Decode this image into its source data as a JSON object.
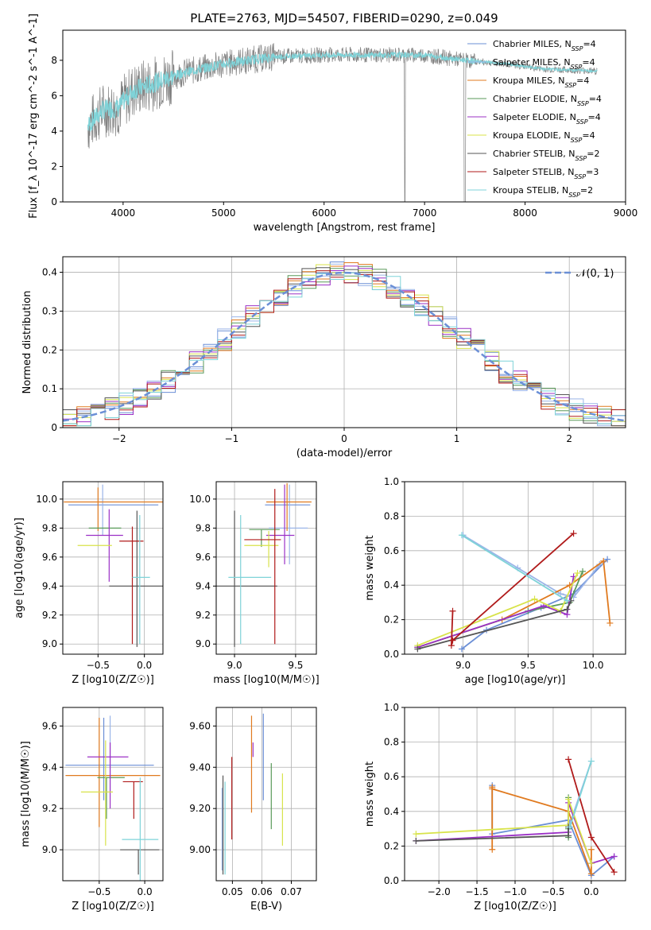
{
  "figure": {
    "title": "PLATE=2763, MJD=54507, FIBERID=0290, z=0.049"
  },
  "models": [
    {
      "name": "Chabrier MILES",
      "nssp": "4",
      "color": "#6b8fd6"
    },
    {
      "name": "Salpeter MILES",
      "nssp": "4",
      "color": "#9bb5e8"
    },
    {
      "name": "Kroupa MILES",
      "nssp": "4",
      "color": "#e07a1f"
    },
    {
      "name": "Chabrier ELODIE",
      "nssp": "4",
      "color": "#5a9a5a"
    },
    {
      "name": "Salpeter ELODIE",
      "nssp": "4",
      "color": "#9b30c6"
    },
    {
      "name": "Kroupa ELODIE",
      "nssp": "4",
      "color": "#d8e34a"
    },
    {
      "name": "Chabrier STELIB",
      "nssp": "2",
      "color": "#555555"
    },
    {
      "name": "Salpeter STELIB",
      "nssp": "3",
      "color": "#b01a1a"
    },
    {
      "name": "Kroupa STELIB",
      "nssp": "2",
      "color": "#7fd3d8"
    }
  ],
  "chart_data": [
    {
      "id": "spectrum",
      "type": "line",
      "xlabel": "wavelength [Angstrom, rest frame]",
      "ylabel": "Flux [f_λ 10^-17 erg cm^-2 s^-1 A^-1]",
      "xlim": [
        3400,
        9000
      ],
      "ylim": [
        0,
        9.7
      ],
      "xticks": [
        4000,
        5000,
        6000,
        7000,
        8000,
        9000
      ],
      "yticks": [
        0,
        2,
        4,
        6,
        8
      ],
      "legend": "right",
      "data_color": "#808080",
      "model_color": "#7fd3d8",
      "continuum": [
        [
          3650,
          4.3
        ],
        [
          3800,
          5.2
        ],
        [
          3950,
          5.3
        ],
        [
          4100,
          6.3
        ],
        [
          4300,
          6.7
        ],
        [
          4600,
          7.3
        ],
        [
          5000,
          7.8
        ],
        [
          5500,
          8.2
        ],
        [
          6000,
          8.3
        ],
        [
          6500,
          8.3
        ],
        [
          7000,
          8.3
        ],
        [
          7400,
          8.0
        ],
        [
          7800,
          7.8
        ],
        [
          8200,
          7.5
        ],
        [
          8700,
          7.4
        ]
      ]
    },
    {
      "id": "residuals",
      "type": "histogram",
      "xlabel": "(data-model)/error",
      "ylabel": "Normed distribution",
      "xlim": [
        -2.5,
        2.5
      ],
      "ylim": [
        0,
        0.44
      ],
      "xticks": [
        -2,
        -1,
        0,
        1,
        2
      ],
      "yticks": [
        0.0,
        0.1,
        0.2,
        0.3,
        0.4
      ],
      "grid": true,
      "legend": "top-right",
      "reference_label": "𝒩(0, 1)",
      "reference_color": "#6b8fd6",
      "bin_width": 0.125
    },
    {
      "id": "age_vs_Z",
      "type": "errorbar",
      "xlabel": "Z [log10(Z/Z☉)]",
      "ylabel": "age [log10(age/yr)]",
      "xlim": [
        -0.88,
        0.2
      ],
      "ylim": [
        8.93,
        10.12
      ],
      "xticks": [
        -0.5,
        0.0
      ],
      "yticks": [
        9.0,
        9.2,
        9.4,
        9.6,
        9.8,
        10.0
      ],
      "grid": true,
      "points": [
        {
          "model": 0,
          "x": -0.35,
          "xerr": [
            0.47,
            0.5
          ],
          "y": 9.96,
          "yerr": [
            0.0,
            0.0
          ]
        },
        {
          "model": 1,
          "x": -0.45,
          "xerr": [
            0.0,
            0.0
          ],
          "y": 9.85,
          "yerr": [
            0.1,
            0.25
          ]
        },
        {
          "model": 2,
          "x": -0.5,
          "xerr": [
            0.37,
            0.7
          ],
          "y": 9.98,
          "yerr": [
            0.2,
            0.1
          ]
        },
        {
          "model": 3,
          "x": -0.35,
          "xerr": [
            0.25,
            0.1
          ],
          "y": 9.8,
          "yerr": [
            0.0,
            0.0
          ]
        },
        {
          "model": 4,
          "x": -0.38,
          "xerr": [
            0.25,
            0.15
          ],
          "y": 9.75,
          "yerr": [
            0.32,
            0.18
          ]
        },
        {
          "model": 5,
          "x": -0.47,
          "xerr": [
            0.25,
            0.12
          ],
          "y": 9.68,
          "yerr": [
            0.0,
            0.0
          ]
        },
        {
          "model": 6,
          "x": -0.08,
          "xerr": [
            0.3,
            0.3
          ],
          "y": 9.4,
          "yerr": [
            0.42,
            0.52
          ]
        },
        {
          "model": 7,
          "x": -0.13,
          "xerr": [
            0.14,
            0.12
          ],
          "y": 9.71,
          "yerr": [
            0.71,
            0.1
          ]
        },
        {
          "model": 8,
          "x": -0.05,
          "xerr": [
            0.08,
            0.11
          ],
          "y": 9.46,
          "yerr": [
            0.46,
            0.43
          ]
        }
      ]
    },
    {
      "id": "age_vs_mass",
      "type": "errorbar",
      "xlabel": "mass [log10(M/M☉)]",
      "ylabel": "",
      "xlim": [
        8.85,
        9.67
      ],
      "ylim": [
        8.93,
        10.12
      ],
      "xticks": [
        9.0,
        9.5
      ],
      "yticks": [
        9.0,
        9.2,
        9.4,
        9.6,
        9.8,
        10.0
      ],
      "grid": true,
      "points": [
        {
          "model": 0,
          "x": 9.42,
          "xerr": [
            0.17,
            0.2
          ],
          "y": 9.96,
          "yerr": [
            0.0,
            0.0
          ]
        },
        {
          "model": 1,
          "x": 9.45,
          "xerr": [
            0.17,
            0.15
          ],
          "y": 9.8,
          "yerr": [
            0.25,
            0.3
          ]
        },
        {
          "model": 2,
          "x": 9.43,
          "xerr": [
            0.17,
            0.2
          ],
          "y": 9.98,
          "yerr": [
            0.2,
            0.13
          ]
        },
        {
          "model": 3,
          "x": 9.22,
          "xerr": [
            0.1,
            0.15
          ],
          "y": 9.79,
          "yerr": [
            0.12,
            0.0
          ]
        },
        {
          "model": 4,
          "x": 9.41,
          "xerr": [
            0.15,
            0.08
          ],
          "y": 9.75,
          "yerr": [
            0.2,
            0.35
          ]
        },
        {
          "model": 5,
          "x": 9.28,
          "xerr": [
            0.2,
            0.08
          ],
          "y": 9.68,
          "yerr": [
            0.15,
            0.1
          ]
        },
        {
          "model": 6,
          "x": 9.0,
          "xerr": [
            0.2,
            0.35
          ],
          "y": 9.4,
          "yerr": [
            0.42,
            0.52
          ]
        },
        {
          "model": 7,
          "x": 9.33,
          "xerr": [
            0.25,
            0.05
          ],
          "y": 9.72,
          "yerr": [
            0.72,
            0.35
          ]
        },
        {
          "model": 8,
          "x": 9.05,
          "xerr": [
            0.1,
            0.25
          ],
          "y": 9.46,
          "yerr": [
            0.46,
            0.43
          ]
        }
      ]
    },
    {
      "id": "mass_weight_vs_age",
      "type": "line",
      "xlabel": "age [log10(age/yr)]",
      "ylabel": "mass weight",
      "xlim": [
        8.55,
        10.25
      ],
      "ylim": [
        0,
        1
      ],
      "xticks": [
        9.0,
        9.5,
        10.0
      ],
      "yticks": [
        0.0,
        0.2,
        0.4,
        0.6,
        0.8,
        1.0
      ],
      "grid": true,
      "series": [
        {
          "model": 0,
          "x": [
            8.99,
            9.18,
            9.6,
            9.85,
            10.11
          ],
          "y": [
            0.03,
            0.14,
            0.27,
            0.35,
            0.55
          ]
        },
        {
          "model": 1,
          "x": [
            9.0,
            9.42,
            9.75,
            9.85,
            10.05
          ],
          "y": [
            0.69,
            0.5,
            0.35,
            0.33,
            0.52
          ]
        },
        {
          "model": 2,
          "x": [
            8.65,
            9.3,
            9.82,
            10.08,
            10.13
          ],
          "y": [
            0.04,
            0.2,
            0.4,
            0.54,
            0.18
          ]
        },
        {
          "model": 3,
          "x": [
            8.65,
            9.5,
            9.82,
            9.92
          ],
          "y": [
            0.04,
            0.25,
            0.3,
            0.48
          ]
        },
        {
          "model": 4,
          "x": [
            8.65,
            9.62,
            9.8,
            9.85
          ],
          "y": [
            0.04,
            0.28,
            0.23,
            0.45
          ]
        },
        {
          "model": 5,
          "x": [
            8.65,
            9.55,
            9.75,
            9.88
          ],
          "y": [
            0.05,
            0.32,
            0.25,
            0.47
          ]
        },
        {
          "model": 6,
          "x": [
            8.65,
            9.8,
            9.83
          ],
          "y": [
            0.03,
            0.26,
            0.31
          ]
        },
        {
          "model": 7,
          "x": [
            8.92,
            8.91,
            8.92,
            9.85
          ],
          "y": [
            0.25,
            0.05,
            0.08,
            0.7
          ]
        },
        {
          "model": 8,
          "x": [
            8.99,
            9.8
          ],
          "y": [
            0.69,
            0.31
          ]
        }
      ]
    },
    {
      "id": "mass_vs_Z",
      "type": "errorbar",
      "xlabel": "Z [log10(Z/Z☉)]",
      "ylabel": "mass [log10(M/M☉)]",
      "xlim": [
        -0.9,
        0.2
      ],
      "ylim": [
        8.85,
        9.69
      ],
      "xticks": [
        -0.5,
        0.0
      ],
      "yticks": [
        9.0,
        9.2,
        9.4,
        9.6
      ],
      "grid": true,
      "points": [
        {
          "model": 0,
          "x": -0.45,
          "xerr": [
            0.42,
            0.55
          ],
          "y": 9.41,
          "yerr": [
            0.17,
            0.23
          ]
        },
        {
          "model": 1,
          "x": -0.38,
          "xerr": [
            0.0,
            0.0
          ],
          "y": 9.45,
          "yerr": [
            0.17,
            0.2
          ]
        },
        {
          "model": 2,
          "x": -0.5,
          "xerr": [
            0.37,
            0.67
          ],
          "y": 9.36,
          "yerr": [
            0.25,
            0.28
          ]
        },
        {
          "model": 3,
          "x": -0.42,
          "xerr": [
            0.1,
            0.2
          ],
          "y": 9.35,
          "yerr": [
            0.2,
            0.0
          ]
        },
        {
          "model": 4,
          "x": -0.38,
          "xerr": [
            0.25,
            0.2
          ],
          "y": 9.45,
          "yerr": [
            0.25,
            0.07
          ]
        },
        {
          "model": 5,
          "x": -0.43,
          "xerr": [
            0.27,
            0.08
          ],
          "y": 9.28,
          "yerr": [
            0.26,
            0.25
          ]
        },
        {
          "model": 6,
          "x": -0.07,
          "xerr": [
            0.2,
            0.23
          ],
          "y": 9.0,
          "yerr": [
            0.12,
            0.0
          ]
        },
        {
          "model": 7,
          "x": -0.12,
          "xerr": [
            0.12,
            0.1
          ],
          "y": 9.33,
          "yerr": [
            0.18,
            0.0
          ]
        },
        {
          "model": 8,
          "x": -0.05,
          "xerr": [
            0.2,
            0.2
          ],
          "y": 9.05,
          "yerr": [
            0.2,
            0.3
          ]
        }
      ]
    },
    {
      "id": "mass_vs_ebv",
      "type": "errorbar",
      "xlabel": "E(B-V)",
      "ylabel": "",
      "xlim": [
        0.0445,
        0.0785
      ],
      "ylim": [
        8.85,
        9.69
      ],
      "xticks": [
        0.05,
        0.06,
        0.07
      ],
      "yticks": [
        9.0,
        9.2,
        9.4,
        9.6
      ],
      "grid": true,
      "points": [
        {
          "model": 0,
          "x": 0.0605,
          "y": 9.44,
          "yerr": [
            0.2,
            0.22
          ]
        },
        {
          "model": 1,
          "x": 0.0465,
          "y": 9.1,
          "yerr": [
            0.2,
            0.2
          ]
        },
        {
          "model": 2,
          "x": 0.0565,
          "y": 9.4,
          "yerr": [
            0.22,
            0.25
          ]
        },
        {
          "model": 3,
          "x": 0.0632,
          "y": 9.2,
          "yerr": [
            0.1,
            0.22
          ]
        },
        {
          "model": 4,
          "x": 0.057,
          "y": 9.45,
          "yerr": [
            0.0,
            0.07
          ]
        },
        {
          "model": 5,
          "x": 0.067,
          "y": 9.2,
          "yerr": [
            0.18,
            0.17
          ]
        },
        {
          "model": 6,
          "x": 0.0468,
          "y": 9.0,
          "yerr": [
            0.12,
            0.36
          ]
        },
        {
          "model": 7,
          "x": 0.0498,
          "y": 9.2,
          "yerr": [
            0.15,
            0.25
          ]
        },
        {
          "model": 8,
          "x": 0.0475,
          "y": 9.0,
          "yerr": [
            0.12,
            0.33
          ]
        }
      ]
    },
    {
      "id": "mass_weight_vs_Z",
      "type": "line",
      "xlabel": "Z [log10(Z/Z☉)]",
      "ylabel": "mass weight",
      "xlim": [
        -2.45,
        0.45
      ],
      "ylim": [
        0,
        1
      ],
      "xticks": [
        -2.0,
        -1.5,
        -1.0,
        -0.5,
        0.0
      ],
      "yticks": [
        0.0,
        0.2,
        0.4,
        0.6,
        0.8,
        1.0
      ],
      "grid": true,
      "series": [
        {
          "model": 0,
          "x": [
            -1.3,
            -1.3,
            -0.3,
            0.0,
            0.3
          ],
          "y": [
            0.55,
            0.27,
            0.35,
            0.03,
            0.14
          ]
        },
        {
          "model": 1,
          "x": [
            -0.28,
            0.0
          ],
          "y": [
            0.33,
            0.69
          ]
        },
        {
          "model": 2,
          "x": [
            -1.3,
            -1.3,
            -1.3,
            -0.3,
            0.0,
            0.0
          ],
          "y": [
            0.54,
            0.18,
            0.53,
            0.4,
            0.04,
            0.18
          ]
        },
        {
          "model": 3,
          "x": [
            -0.3,
            -0.3,
            -0.3
          ],
          "y": [
            0.48,
            0.25,
            0.3
          ]
        },
        {
          "model": 4,
          "x": [
            -2.3,
            -0.3,
            -0.3,
            0.0,
            0.3
          ],
          "y": [
            0.23,
            0.28,
            0.45,
            0.1,
            0.14
          ]
        },
        {
          "model": 5,
          "x": [
            -2.3,
            -0.3,
            -0.3,
            0.0
          ],
          "y": [
            0.27,
            0.32,
            0.47,
            0.1
          ]
        },
        {
          "model": 6,
          "x": [
            -2.3,
            -0.3,
            -0.3
          ],
          "y": [
            0.23,
            0.26,
            0.31
          ]
        },
        {
          "model": 7,
          "x": [
            -0.3,
            0.0,
            0.3
          ],
          "y": [
            0.7,
            0.25,
            0.05
          ]
        },
        {
          "model": 8,
          "x": [
            0.0,
            -0.28
          ],
          "y": [
            0.69,
            0.31
          ]
        }
      ]
    }
  ]
}
